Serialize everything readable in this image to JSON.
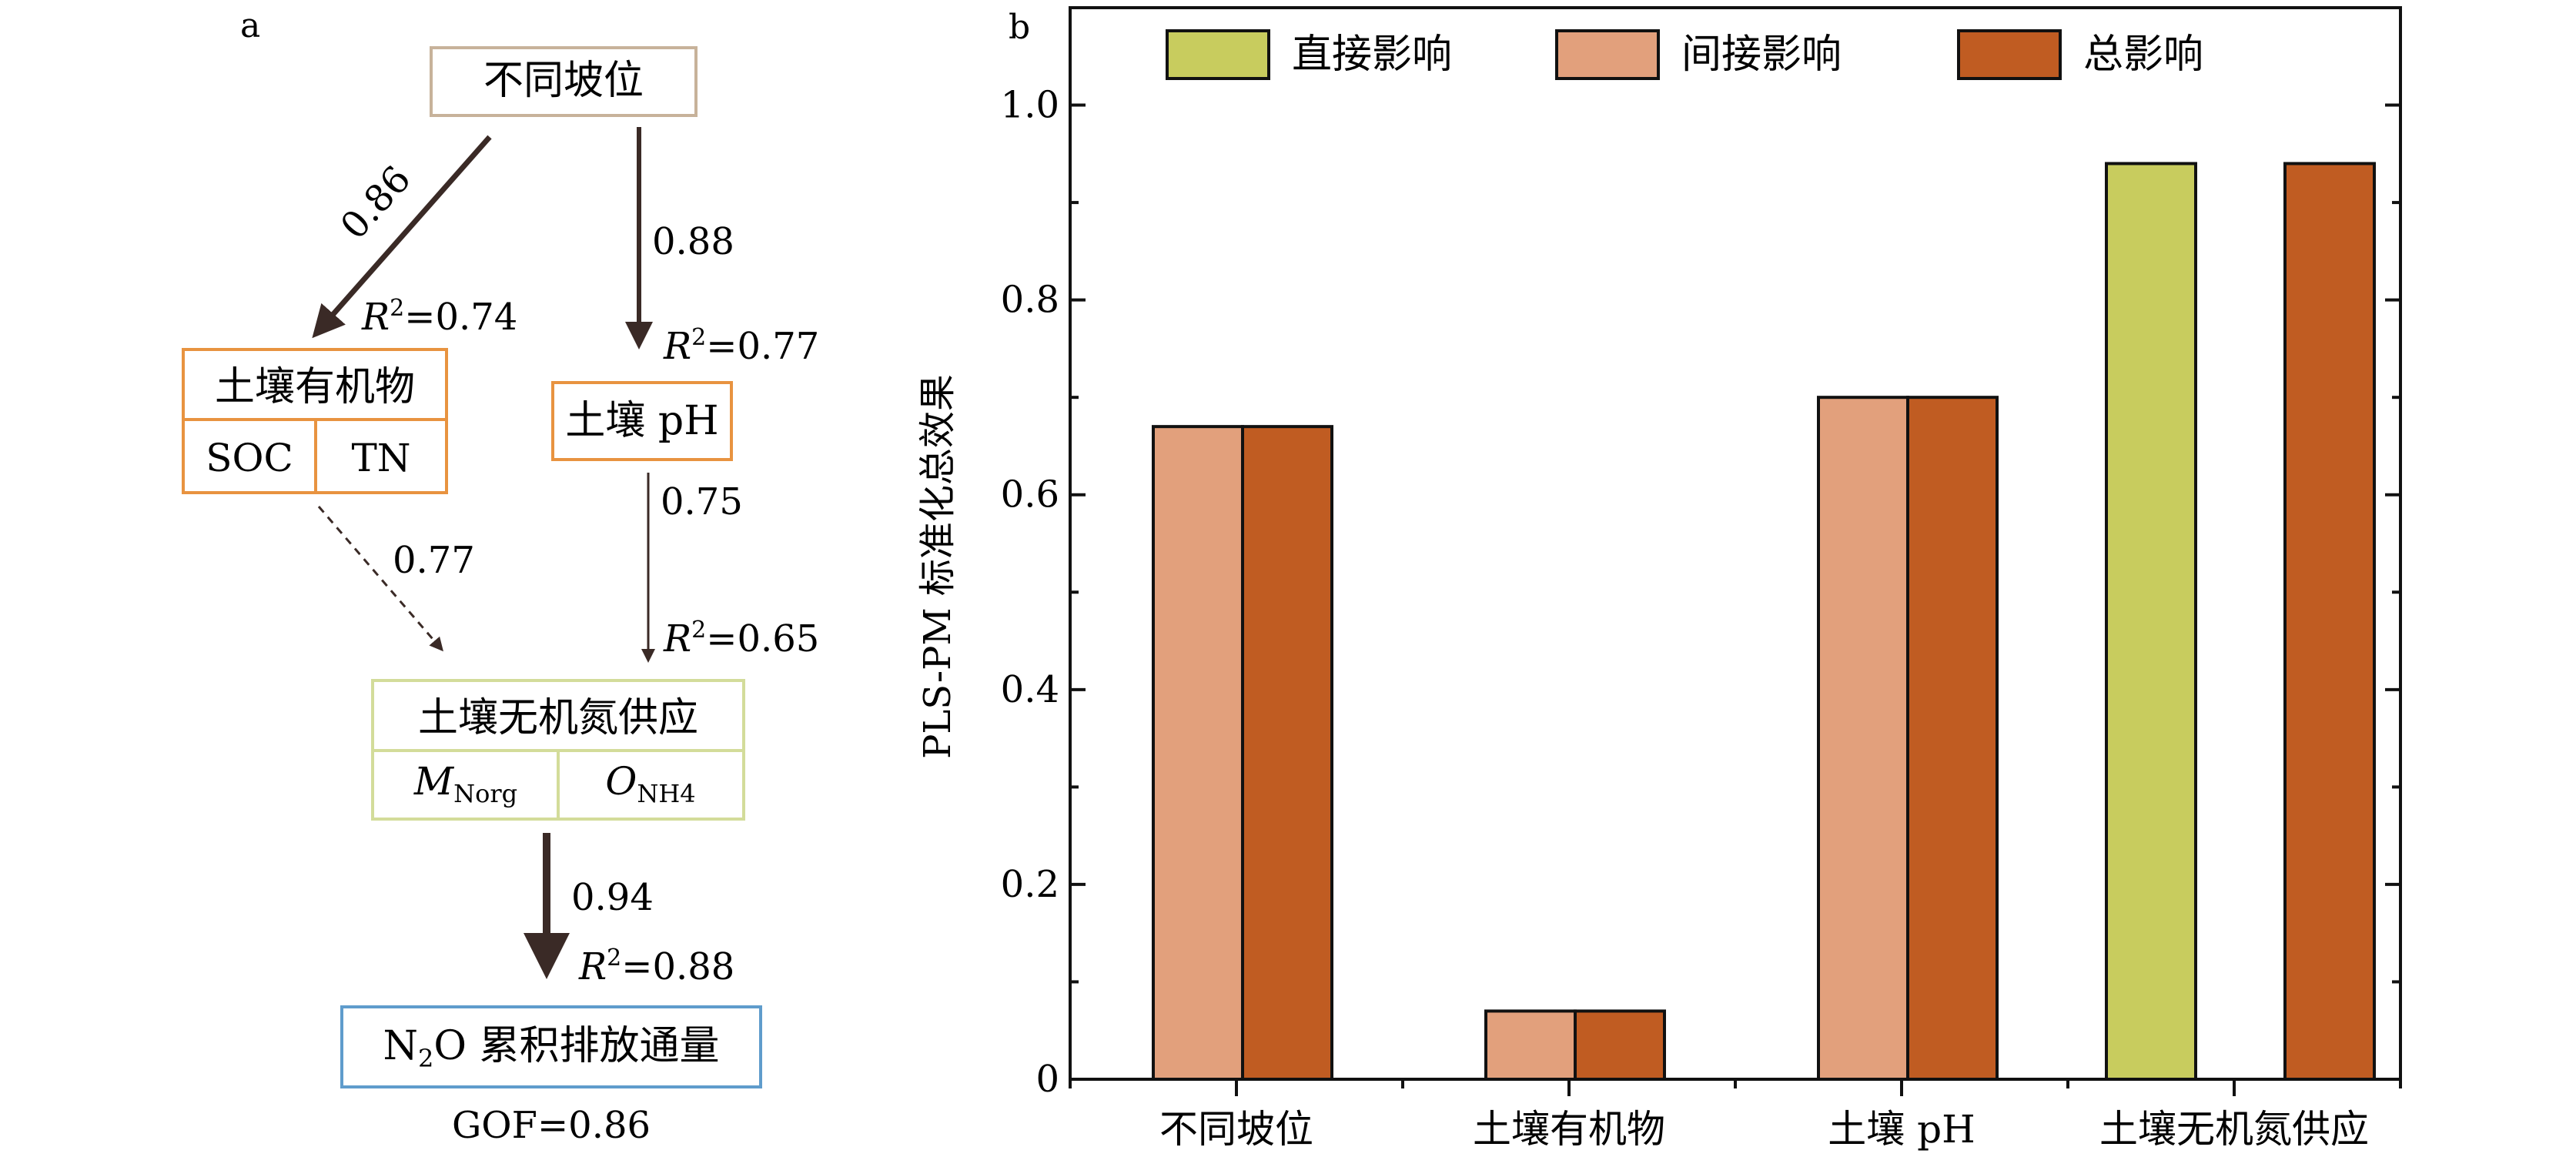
{
  "panel_a": {
    "label": "a",
    "nodes": {
      "slope": {
        "title": "不同坡位"
      },
      "soil_organic": {
        "title": "土壤有机物",
        "cells": [
          "SOC",
          "TN"
        ]
      },
      "soil_ph": {
        "title": "土壤 pH"
      },
      "inorganic_n": {
        "title": "土壤无机氮供应",
        "cells": [
          {
            "main": "M",
            "sub": "Norg"
          },
          {
            "main": "O",
            "sub": "NH4"
          }
        ]
      },
      "n2o": {
        "title_main": "N",
        "title_sub": "2",
        "title_rest": "O 累积排放通量"
      }
    },
    "paths": [
      {
        "from": "slope",
        "to": "soil_organic",
        "coef": "0.86",
        "r2": "0.74",
        "style": "solid"
      },
      {
        "from": "slope",
        "to": "soil_ph",
        "coef": "0.88",
        "r2": "0.77",
        "style": "solid"
      },
      {
        "from": "soil_organic",
        "to": "inorganic_n",
        "coef": "0.77",
        "style": "dashed"
      },
      {
        "from": "soil_ph",
        "to": "inorganic_n",
        "coef": "0.75",
        "r2": "0.65",
        "style": "solid"
      },
      {
        "from": "inorganic_n",
        "to": "n2o",
        "coef": "0.94",
        "r2": "0.88",
        "style": "solid"
      }
    ],
    "r2_symbol": "R",
    "r2_exp": "2",
    "gof": "GOF=0.86"
  },
  "chart_data": {
    "label": "b",
    "type": "bar",
    "categories": [
      "不同坡位",
      "土壤有机物",
      "土壤 pH",
      "土壤无机氮供应"
    ],
    "series": [
      {
        "name": "直接影响",
        "color": "#c8cc5e",
        "values": [
          0,
          0,
          0,
          0.94
        ]
      },
      {
        "name": "间接影响",
        "color": "#e2a07c",
        "values": [
          0.67,
          0.07,
          0.7,
          0
        ]
      },
      {
        "name": "总影响",
        "color": "#c05c22",
        "values": [
          0.67,
          0.07,
          0.7,
          0.94
        ]
      }
    ],
    "ylabel": "PLS-PM 标准化总效果",
    "xlabel": "",
    "ylim": [
      0,
      1.1
    ],
    "yticks": [
      0,
      0.2,
      0.4,
      0.6,
      0.8,
      1.0
    ],
    "ytick_labels": [
      "0",
      "0.2",
      "0.4",
      "0.6",
      "0.8",
      "1.0"
    ],
    "legend_position": "top"
  }
}
